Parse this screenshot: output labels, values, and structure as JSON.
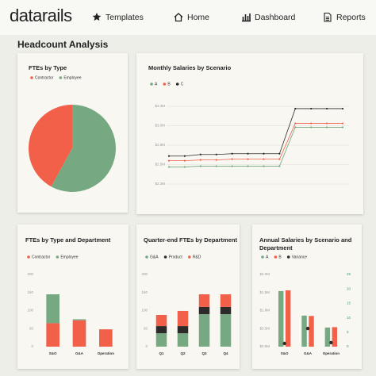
{
  "nav": {
    "logo": "datarails",
    "items": [
      "Templates",
      "Home",
      "Dashboard",
      "Reports"
    ]
  },
  "section_title": "Headcount Analysis",
  "chart_data": [
    {
      "type": "pie",
      "title": "FTEs by Type",
      "categories": [
        "Contractor",
        "Employee"
      ],
      "values": [
        42,
        58
      ],
      "colors": [
        "#f2604a",
        "#76a882"
      ]
    },
    {
      "type": "line",
      "title": "Monthly Salaries by Scenario",
      "categories": [
        null,
        null,
        null,
        null,
        null,
        null,
        null,
        null,
        null,
        null,
        null,
        null
      ],
      "series": [
        {
          "name": "A",
          "color": "#76a882",
          "values": [
            2470000,
            2470000,
            2480000,
            2480000,
            2480000,
            2480000,
            2480000,
            2480000,
            2980000,
            2980000,
            2980000,
            2980000
          ]
        },
        {
          "name": "B",
          "color": "#f2604a",
          "values": [
            2550000,
            2550000,
            2560000,
            2560000,
            2570000,
            2570000,
            2570000,
            2570000,
            3030000,
            3030000,
            3030000,
            3030000
          ]
        },
        {
          "name": "C",
          "color": "#2e2a2a",
          "values": [
            2610000,
            2610000,
            2630000,
            2630000,
            2640000,
            2640000,
            2640000,
            2640000,
            3220000,
            3220000,
            3220000,
            3220000
          ]
        }
      ],
      "ylim": [
        2250000,
        3250000
      ],
      "yticks": [
        {
          "value": 2250000,
          "label": "$2.3M"
        },
        {
          "value": 2500000,
          "label": "$2.5M"
        },
        {
          "value": 2750000,
          "label": "$2.8M"
        },
        {
          "value": 3000000,
          "label": "$3.0M"
        },
        {
          "value": 3250000,
          "label": "$3.3M"
        }
      ],
      "grid": true
    },
    {
      "type": "bar",
      "stacked": true,
      "title": "FTEs by Type and Department",
      "categories": [
        "S&O",
        "G&A",
        "Operation"
      ],
      "series": [
        {
          "name": "Contractor",
          "color": "#f2604a",
          "values": [
            65,
            73,
            48
          ]
        },
        {
          "name": "Employee",
          "color": "#76a882",
          "values": [
            80,
            3,
            0
          ]
        }
      ],
      "ylim": [
        0,
        200
      ],
      "yticks": [
        0,
        50,
        100,
        150,
        200
      ]
    },
    {
      "type": "bar",
      "stacked": true,
      "title": "Quarter-end FTEs by Department",
      "categories": [
        "Q1",
        "Q2",
        "Q3",
        "Q4"
      ],
      "series": [
        {
          "name": "G&A",
          "color": "#76a882",
          "values": [
            37,
            37,
            90,
            90
          ]
        },
        {
          "name": "Product",
          "color": "#2e2a2a",
          "values": [
            20,
            20,
            20,
            20
          ]
        },
        {
          "name": "R&D",
          "color": "#f2604a",
          "values": [
            31,
            42,
            35,
            35
          ]
        }
      ],
      "ylim": [
        0,
        200
      ],
      "yticks": [
        0,
        50,
        100,
        150,
        200
      ]
    },
    {
      "type": "bar",
      "stacked": false,
      "title": "Annual Salaries by Scenario and Department",
      "categories": [
        "S&O",
        "G&A",
        "Operation"
      ],
      "series": [
        {
          "name": "A",
          "color": "#76a882",
          "values": [
            1540000,
            860000,
            530000
          ]
        },
        {
          "name": "B",
          "color": "#f2604a",
          "values": [
            1560000,
            850000,
            540000
          ]
        },
        {
          "name": "Variance",
          "color": "#2e2a2a",
          "type": "scatter",
          "axis": "y2",
          "values": [
            1.1,
            6.3,
            1.4
          ]
        }
      ],
      "ylim": [
        0,
        2000000
      ],
      "yticks": [
        {
          "value": 0,
          "label": "$0.0M"
        },
        {
          "value": 500000,
          "label": "$0.5M"
        },
        {
          "value": 1000000,
          "label": "$1.0M"
        },
        {
          "value": 1500000,
          "label": "$1.5M"
        },
        {
          "value": 2000000,
          "label": "$2.0M"
        }
      ],
      "y2lim": [
        0,
        25
      ],
      "y2ticks": [
        0,
        5,
        10,
        15,
        20,
        25
      ]
    }
  ]
}
